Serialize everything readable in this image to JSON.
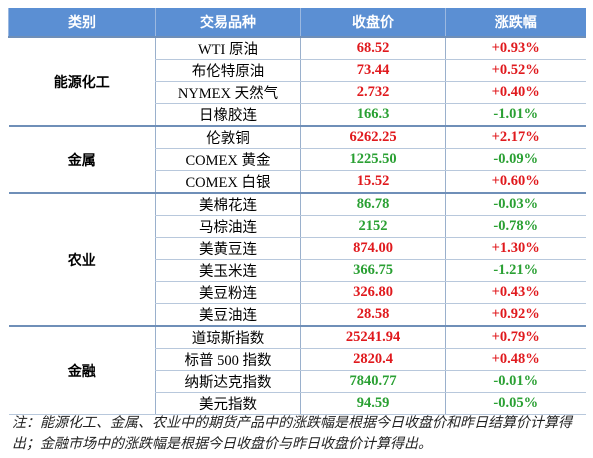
{
  "header": [
    "类别",
    "交易品种",
    "收盘价",
    "涨跌幅"
  ],
  "groups": [
    {
      "name": "能源化工",
      "rows": [
        {
          "product": "WTI 原油",
          "close": "68.52",
          "change": "+0.93%"
        },
        {
          "product": "布伦特原油",
          "close": "73.44",
          "change": "+0.52%"
        },
        {
          "product": "NYMEX 天然气",
          "close": "2.732",
          "change": "+0.40%"
        },
        {
          "product": "日橡胶连",
          "close": "166.3",
          "change": "-1.01%"
        }
      ]
    },
    {
      "name": "金属",
      "rows": [
        {
          "product": "伦敦铜",
          "close": "6262.25",
          "change": "+2.17%"
        },
        {
          "product": "COMEX 黄金",
          "close": "1225.50",
          "change": "-0.09%"
        },
        {
          "product": "COMEX 白银",
          "close": "15.52",
          "change": "+0.60%"
        }
      ]
    },
    {
      "name": "农业",
      "rows": [
        {
          "product": "美棉花连",
          "close": "86.78",
          "change": "-0.03%"
        },
        {
          "product": "马棕油连",
          "close": "2152",
          "change": "-0.78%"
        },
        {
          "product": "美黄豆连",
          "close": "874.00",
          "change": "+1.30%"
        },
        {
          "product": "美玉米连",
          "close": "366.75",
          "change": "-1.21%"
        },
        {
          "product": "美豆粉连",
          "close": "326.80",
          "change": "+0.43%"
        },
        {
          "product": "美豆油连",
          "close": "28.58",
          "change": "+0.92%"
        }
      ]
    },
    {
      "name": "金融",
      "rows": [
        {
          "product": "道琼斯指数",
          "close": "25241.94",
          "change": "+0.79%"
        },
        {
          "product": "标普 500 指数",
          "close": "2820.4",
          "change": "+0.48%"
        },
        {
          "product": "纳斯达克指数",
          "close": "7840.77",
          "change": "-0.01%"
        },
        {
          "product": "美元指数",
          "close": "94.59",
          "change": "-0.05%"
        }
      ]
    }
  ],
  "note": "注：能源化工、金属、农业中的期货产品中的涨跌幅是根据今日收盘价和昨日结算价计算得出；金融市场中的涨跌幅是根据今日收盘价与昨日收盘价计算得出。"
}
